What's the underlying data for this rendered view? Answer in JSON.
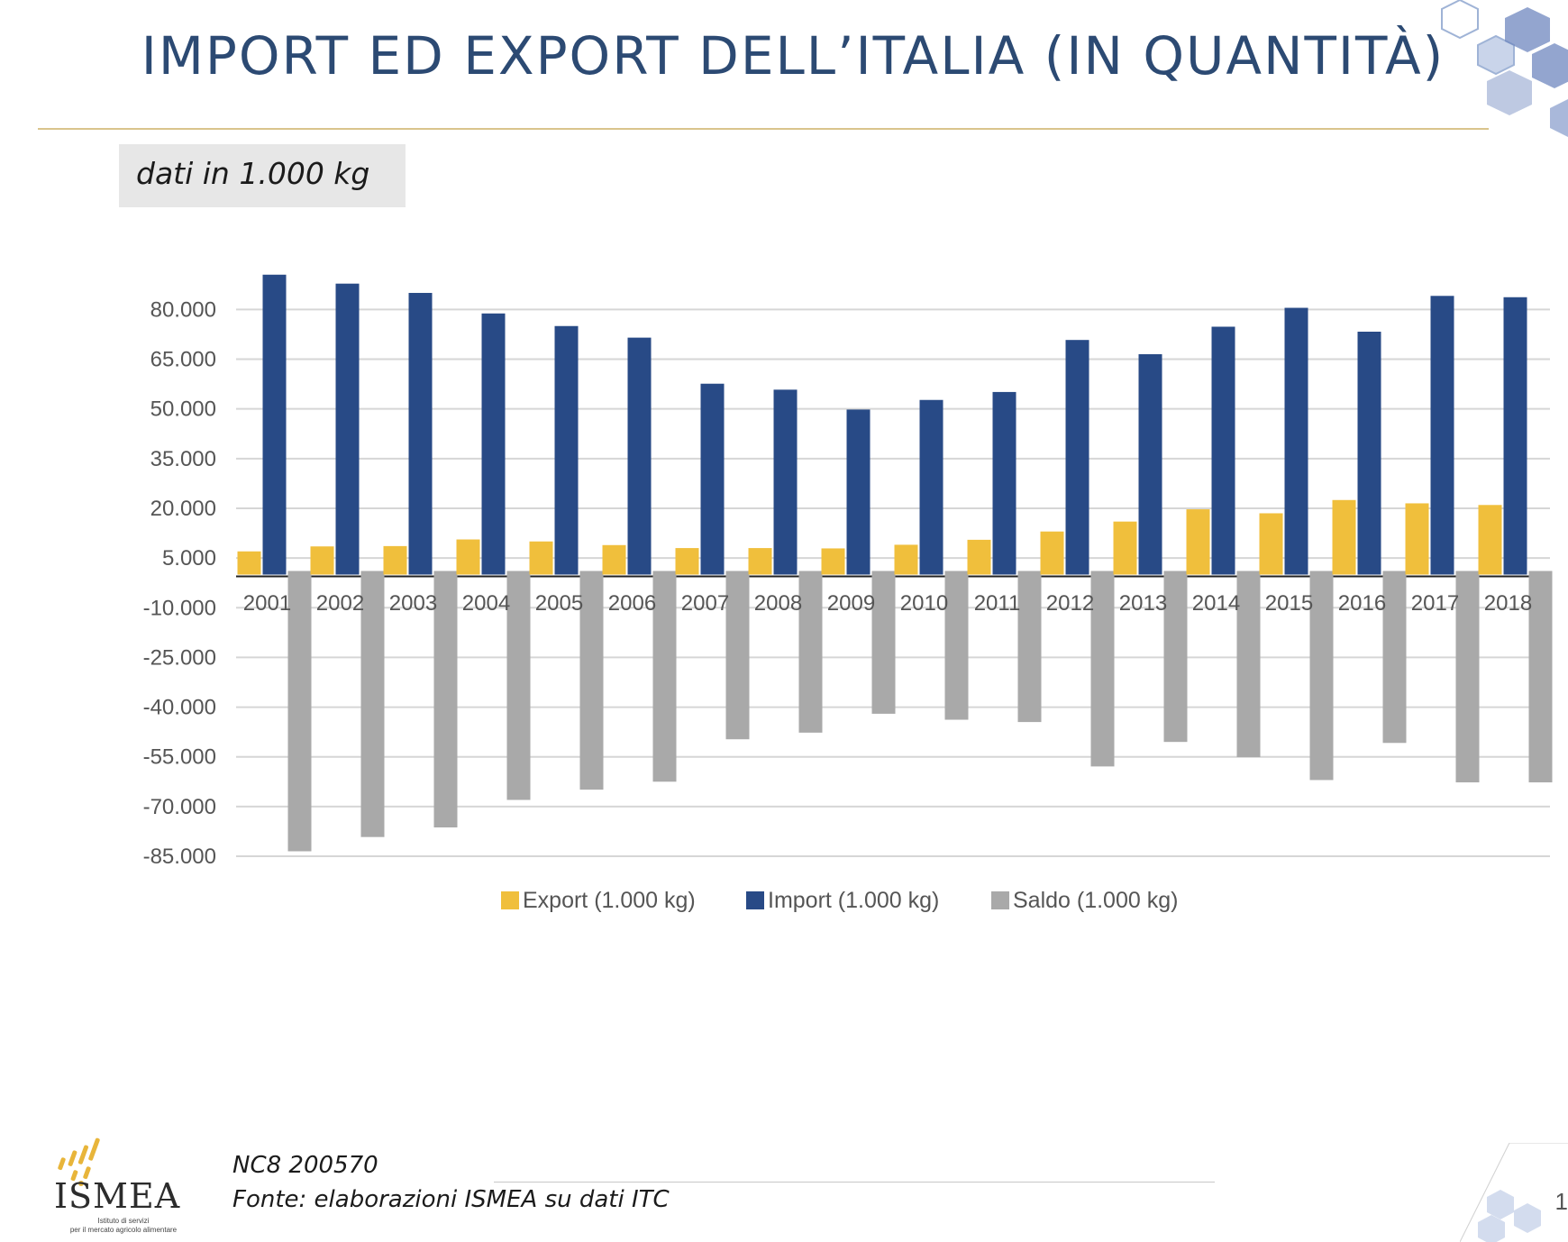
{
  "header": {
    "title": "IMPORT ED EXPORT DELL’ITALIA (IN QUANTITÀ)",
    "unit_note": "dati in 1.000 kg"
  },
  "chart_data": {
    "type": "bar",
    "categories": [
      "2001",
      "2002",
      "2003",
      "2004",
      "2005",
      "2006",
      "2007",
      "2008",
      "2009",
      "2010",
      "2011",
      "2012",
      "2013",
      "2014",
      "2015",
      "2016",
      "2017",
      "2018"
    ],
    "series": [
      {
        "name": "Export (1.000 kg)",
        "color": "#f0bf3c",
        "values": [
          7000,
          8500,
          8600,
          10600,
          10000,
          8900,
          8000,
          8000,
          7900,
          9000,
          10500,
          13000,
          16000,
          19700,
          18500,
          22500,
          21500,
          21000
        ]
      },
      {
        "name": "Import (1.000 kg)",
        "color": "#284a86",
        "values": [
          90500,
          87800,
          85000,
          78800,
          75000,
          71500,
          57600,
          55800,
          49800,
          52700,
          55100,
          70800,
          66500,
          74800,
          80500,
          73300,
          84100,
          83700
        ]
      },
      {
        "name": "Saldo (1.000 kg)",
        "color": "#a9a9a9",
        "values": [
          -83500,
          -79200,
          -76300,
          -68000,
          -64900,
          -62500,
          -49700,
          -47700,
          -42000,
          -43800,
          -44500,
          -57900,
          -50500,
          -55100,
          -62000,
          -50800,
          -62700,
          -62700
        ]
      }
    ],
    "yticks": [
      80000,
      65000,
      50000,
      35000,
      20000,
      5000,
      -10000,
      -25000,
      -40000,
      -55000,
      -70000,
      -85000
    ],
    "ytick_labels": [
      "80.000",
      "65.000",
      "50.000",
      "35.000",
      "20.000",
      "5.000",
      "-10.000",
      "-25.000",
      "-40.000",
      "-55.000",
      "-70.000",
      "-85.000"
    ],
    "ylim": [
      -86000,
      92000
    ],
    "grid": true,
    "legend_position": "bottom"
  },
  "footer": {
    "code": "NC8 200570",
    "source": "Fonte: elaborazioni ISMEA su dati ITC",
    "logo_text": "ISMEA",
    "logo_sub1": "Istituto di servizi",
    "logo_sub2": "per il mercato agricolo alimentare",
    "page_number": "1"
  }
}
